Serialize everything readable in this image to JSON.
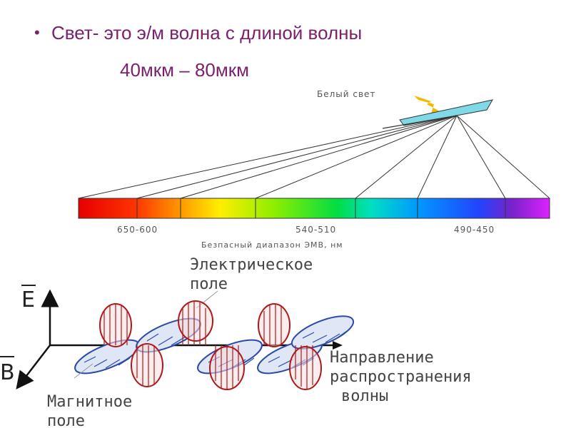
{
  "slide": {
    "bullet_text": "Свет- это э/м волна с длиной волны",
    "range_text": "40мкм – 80мкм"
  },
  "spectrum": {
    "white_light_label": "Белый свет",
    "tick_labels": [
      "650-600",
      "540-510",
      "490-450"
    ],
    "caption": "Безпасный диапазон ЭМВ, нм"
  },
  "wave": {
    "electric_label_line1": "Электрическое",
    "electric_label_line2": "поле",
    "magnetic_label_line1": "Магнитное",
    "magnetic_label_line2": "поле",
    "direction_label_line1": "Направление",
    "direction_label_line2": "распространения",
    "direction_label_line3": "волны",
    "axis_e": "E",
    "axis_b": "B"
  },
  "colors": {
    "text_purple": "#7a1f6e",
    "electric_red": "#b01818",
    "magnetic_blue": "#2b4aa8"
  }
}
